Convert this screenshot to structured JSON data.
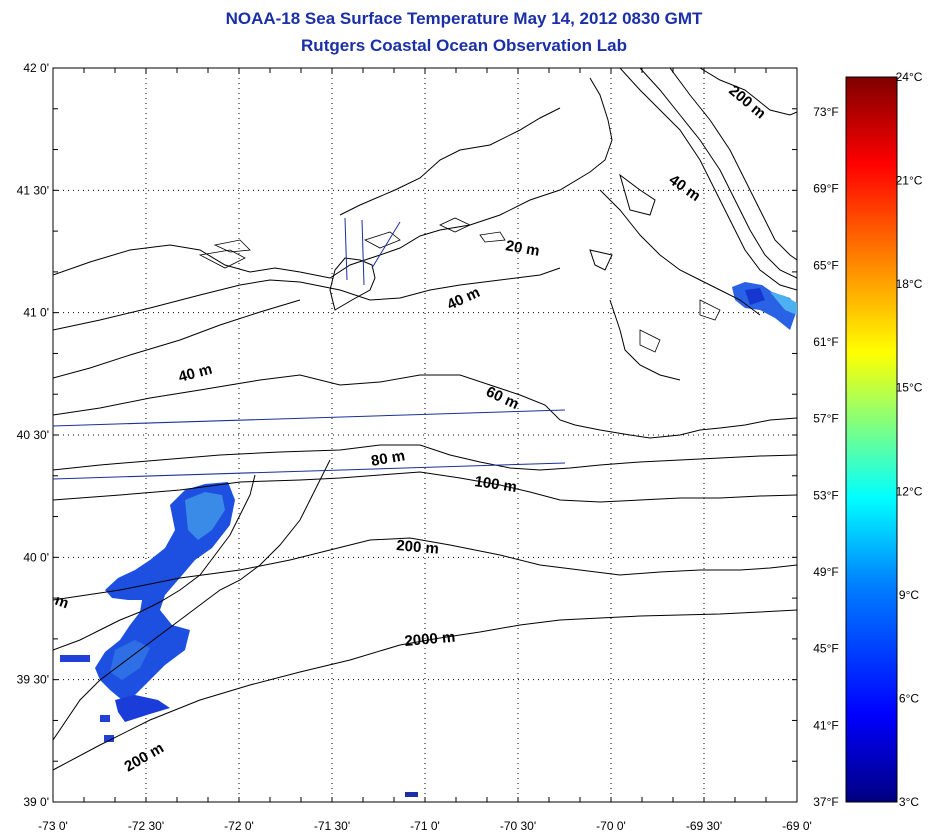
{
  "header": {
    "title": "NOAA-18 Sea Surface Temperature May 14, 2012 0830 GMT",
    "subtitle": "Rutgers Coastal Ocean Observation Lab"
  },
  "map": {
    "lon_range": [
      -73,
      -69
    ],
    "lat_range": [
      39,
      42
    ],
    "lat_ticks": [
      "42 0'",
      "41 30'",
      "41 0'",
      "40 30'",
      "40 0'",
      "39 30'",
      "39 0'"
    ],
    "lon_ticks": [
      "-73 0'",
      "-72 30'",
      "-72 0'",
      "-71 30'",
      "-71 0'",
      "-70 30'",
      "-70 0'",
      "-69 30'",
      "-69 0'"
    ],
    "grid": true,
    "contour_labels": [
      "200 m",
      "40 m",
      "20 m",
      "40 m",
      "40 m",
      "60 m",
      "80 m",
      "100 m",
      "200 m",
      "2000 m",
      "200 m",
      "m"
    ],
    "colors": {
      "title": "#1a2fa8",
      "land_and_contours": "#000000",
      "track_lines": "#1a2f9a"
    }
  },
  "fahrenheit_scale": {
    "labels": [
      "73°F",
      "69°F",
      "65°F",
      "61°F",
      "57°F",
      "53°F",
      "49°F",
      "45°F",
      "41°F",
      "37°F"
    ]
  },
  "colorbar": {
    "labels": [
      "24°C",
      "21°C",
      "18°C",
      "15°C",
      "12°C",
      "9°C",
      "6°C",
      "3°C"
    ],
    "range_c": [
      3,
      24
    ],
    "colormap": [
      "#00007f",
      "#0000ff",
      "#0080ff",
      "#00ffff",
      "#80ff80",
      "#ffff00",
      "#ff8000",
      "#ff0000",
      "#7f0000"
    ]
  }
}
